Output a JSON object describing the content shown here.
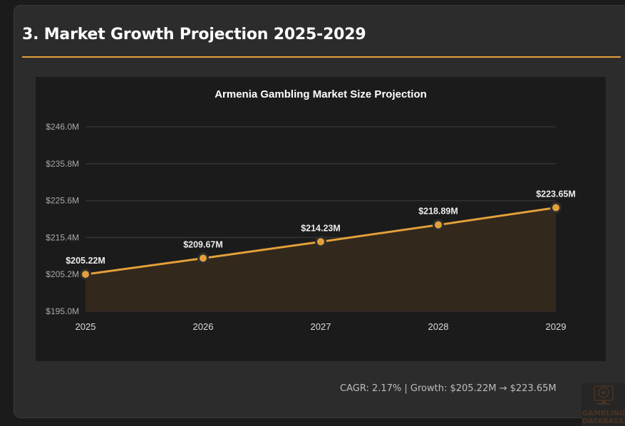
{
  "section": {
    "title": "3. Market Growth Projection 2025-2029",
    "caption": "CAGR: 2.17% | Growth: $205.22M → $223.65M"
  },
  "colors": {
    "accent": "#e3a03a",
    "card": "#2c2c2c",
    "chart_bg": "#1b1b1b",
    "area_fill": "#32281c",
    "grid": "#333333"
  },
  "watermark": {
    "icon": "roulette-monitor-icon",
    "line1": "GAMBLING",
    "line2": "DATABASES"
  },
  "chart_data": {
    "type": "area",
    "title": "Armenia Gambling Market Size Projection",
    "xlabel": "",
    "ylabel": "",
    "categories": [
      "2025",
      "2026",
      "2027",
      "2028",
      "2029"
    ],
    "series": [
      {
        "name": "Market Size",
        "values": [
          205.22,
          209.67,
          214.23,
          218.89,
          223.65
        ]
      }
    ],
    "data_labels": [
      "$205.22M",
      "$209.67M",
      "$214.23M",
      "$218.89M",
      "$223.65M"
    ],
    "ylim": [
      195.0,
      246.0
    ],
    "yticks": [
      195.0,
      205.2,
      215.4,
      225.6,
      235.8,
      246.0
    ],
    "ytick_labels": [
      "$195.0M",
      "$205.2M",
      "$215.4M",
      "$225.6M",
      "$235.8M",
      "$246.0M"
    ],
    "grid": true,
    "legend": "none"
  }
}
